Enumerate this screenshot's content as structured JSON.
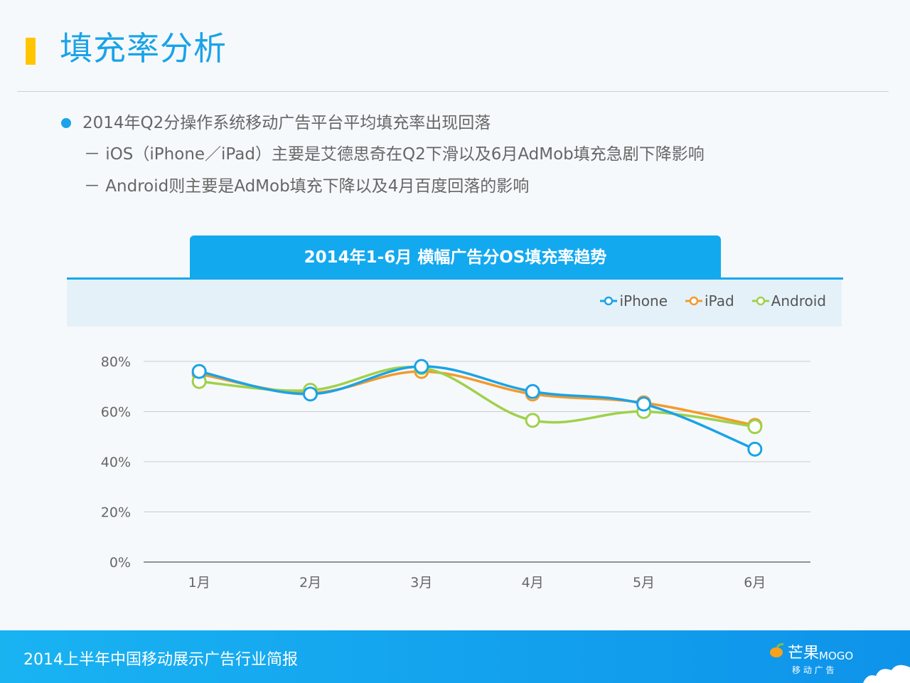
{
  "page": {
    "title": "填充率分析",
    "bullet": "2014年Q2分操作系统移动广告平台平均填充率出现回落",
    "sub1": "－ iOS（iPhone／iPad）主要是艾德思奇在Q2下滑以及6月AdMob填充急剧下降影响",
    "sub2": "－ Android则主要是AdMob填充下降以及4月百度回落的影响"
  },
  "footer": {
    "text": "2014上半年中国移动展示广告行业简报",
    "logo_name": "芒果",
    "logo_en": "MOGO",
    "logo_sub": "移 动 广 告"
  },
  "colors": {
    "iPhone": "#1aa3e8",
    "iPad": "#f39a2b",
    "Android": "#9fd14c",
    "accent": "#1aa3e8",
    "title_bar": "#ffc600"
  },
  "chart_data": {
    "type": "line",
    "title": "2014年1-6月 横幅广告分OS填充率趋势",
    "categories": [
      "1月",
      "2月",
      "3月",
      "4月",
      "5月",
      "6月"
    ],
    "series": [
      {
        "name": "iPhone",
        "values": [
          76,
          67,
          78,
          68,
          63,
          45
        ]
      },
      {
        "name": "iPad",
        "values": [
          75,
          67.5,
          76,
          67,
          63.5,
          54.5
        ]
      },
      {
        "name": "Android",
        "values": [
          72,
          68.5,
          77.5,
          56.5,
          60,
          54
        ]
      }
    ],
    "ylim": [
      0,
      80
    ],
    "yticks": [
      "0%",
      "20%",
      "40%",
      "60%",
      "80%"
    ],
    "ytick_values": [
      0,
      20,
      40,
      60,
      80
    ],
    "grid": true,
    "legend": "top-right"
  }
}
